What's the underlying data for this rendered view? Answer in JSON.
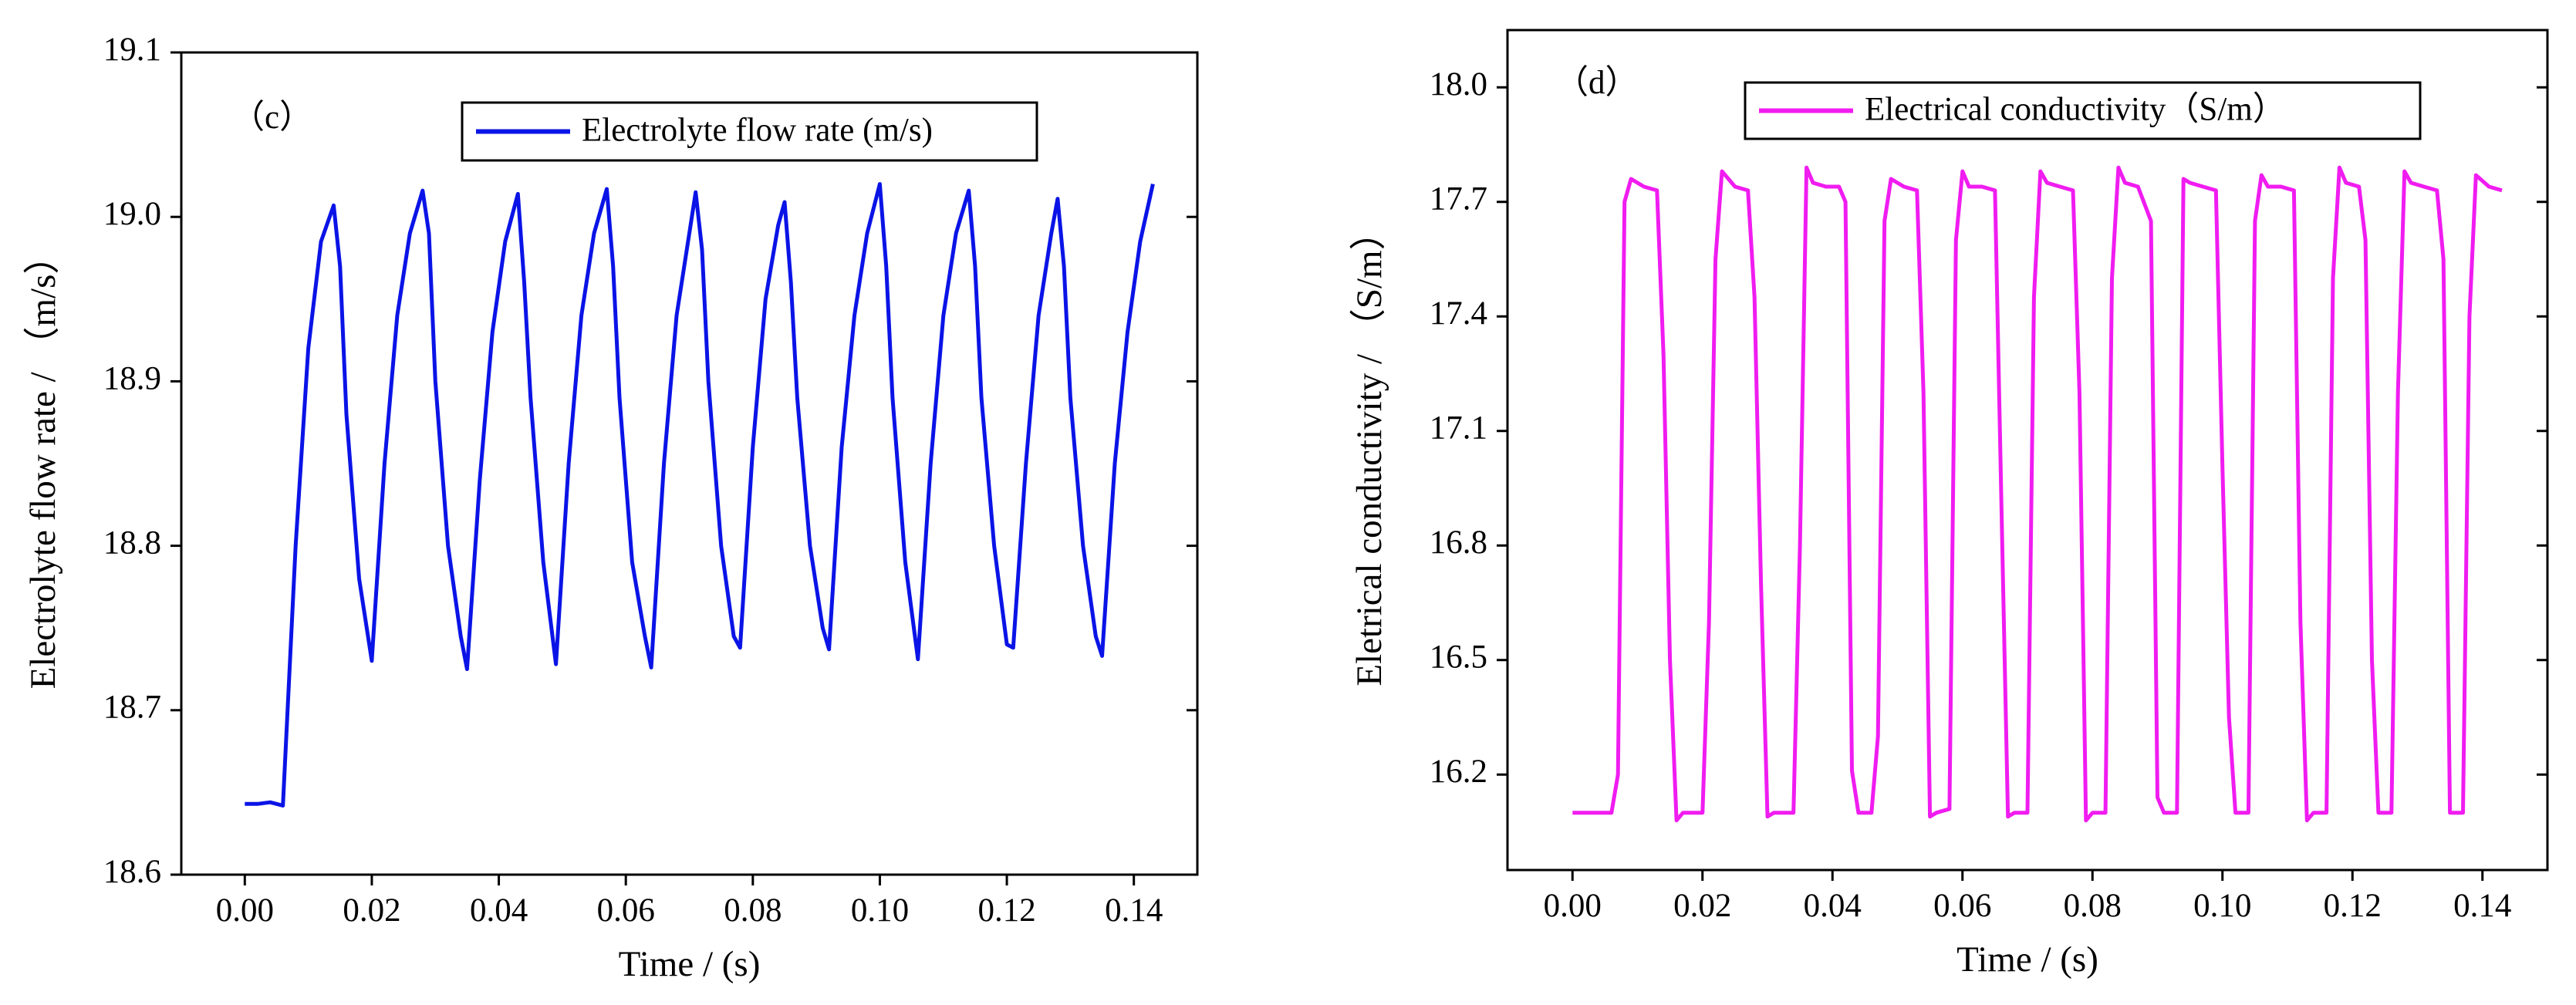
{
  "chart_data": [
    {
      "type": "line",
      "panel_label": "（c）",
      "xlabel": "Time / (s)",
      "ylabel": "Electrolyte flow rate  / （m/s）",
      "xlim": [
        -0.01,
        0.15
      ],
      "ylim": [
        18.6,
        19.1
      ],
      "xticks": [
        {
          "value": 0,
          "label": "0.00"
        },
        {
          "value": 0.02,
          "label": "0.02"
        },
        {
          "value": 0.04,
          "label": "0.04"
        },
        {
          "value": 0.06,
          "label": "0.06"
        },
        {
          "value": 0.08,
          "label": "0.08"
        },
        {
          "value": 0.1,
          "label": "0.10"
        },
        {
          "value": 0.12,
          "label": "0.12"
        },
        {
          "value": 0.14,
          "label": "0.14"
        }
      ],
      "yticks": [
        18.6,
        18.7,
        18.8,
        18.9,
        {
          "value": 19,
          "label": "19.0"
        },
        19.1
      ],
      "x": [
        0.0,
        0.002,
        0.004,
        0.005,
        0.006,
        0.008,
        0.01,
        0.012,
        0.014,
        0.015,
        0.016,
        0.018,
        0.02,
        0.022,
        0.024,
        0.026,
        0.028,
        0.029,
        0.03,
        0.032,
        0.034,
        0.035,
        0.037,
        0.039,
        0.041,
        0.043,
        0.044,
        0.045,
        0.047,
        0.049,
        0.051,
        0.053,
        0.055,
        0.057,
        0.058,
        0.059,
        0.061,
        0.063,
        0.064,
        0.066,
        0.068,
        0.07,
        0.071,
        0.072,
        0.073,
        0.075,
        0.077,
        0.078,
        0.08,
        0.082,
        0.084,
        0.085,
        0.086,
        0.087,
        0.089,
        0.091,
        0.092,
        0.094,
        0.096,
        0.098,
        0.1,
        0.101,
        0.102,
        0.104,
        0.106,
        0.108,
        0.11,
        0.112,
        0.114,
        0.115,
        0.116,
        0.118,
        0.12,
        0.121,
        0.123,
        0.125,
        0.127,
        0.128,
        0.129,
        0.13,
        0.132,
        0.134,
        0.135,
        0.137,
        0.139,
        0.141,
        0.143
      ],
      "series": [
        {
          "name": "Electrolyte flow rate (m/s)",
          "color": "#0a14e6",
          "values": [
            18.643,
            18.643,
            18.644,
            18.643,
            18.642,
            18.8,
            18.92,
            18.985,
            19.007,
            18.97,
            18.88,
            18.78,
            18.73,
            18.85,
            18.94,
            18.99,
            19.016,
            18.99,
            18.9,
            18.8,
            18.745,
            18.725,
            18.84,
            18.93,
            18.985,
            19.014,
            18.96,
            18.89,
            18.79,
            18.728,
            18.85,
            18.94,
            18.99,
            19.017,
            18.97,
            18.89,
            18.79,
            18.745,
            18.726,
            18.85,
            18.94,
            18.99,
            19.015,
            18.98,
            18.9,
            18.8,
            18.745,
            18.738,
            18.86,
            18.95,
            18.995,
            19.009,
            18.96,
            18.89,
            18.8,
            18.75,
            18.737,
            18.86,
            18.94,
            18.99,
            19.02,
            18.97,
            18.89,
            18.79,
            18.731,
            18.85,
            18.94,
            18.99,
            19.016,
            18.97,
            18.89,
            18.8,
            18.74,
            18.738,
            18.85,
            18.94,
            18.99,
            19.011,
            18.97,
            18.89,
            18.8,
            18.745,
            18.733,
            18.85,
            18.93,
            18.985,
            19.02
          ]
        }
      ]
    },
    {
      "type": "line",
      "panel_label": "（d）",
      "xlabel": "Time / (s)",
      "ylabel": "Eletrical conductivity  / （S/m）",
      "xlim": [
        -0.01,
        0.15
      ],
      "ylim": [
        15.95,
        18.15
      ],
      "xticks": [
        {
          "value": 0,
          "label": "0.00"
        },
        {
          "value": 0.02,
          "label": "0.02"
        },
        {
          "value": 0.04,
          "label": "0.04"
        },
        {
          "value": 0.06,
          "label": "0.06"
        },
        {
          "value": 0.08,
          "label": "0.08"
        },
        {
          "value": 0.1,
          "label": "0.10"
        },
        {
          "value": 0.12,
          "label": "0.12"
        },
        {
          "value": 0.14,
          "label": "0.14"
        }
      ],
      "yticks": [
        16.2,
        16.5,
        16.8,
        17.1,
        17.4,
        17.7,
        {
          "value": 18,
          "label": "18.0"
        }
      ],
      "x": [
        0.0,
        0.006,
        0.007,
        0.008,
        0.009,
        0.011,
        0.013,
        0.014,
        0.015,
        0.016,
        0.017,
        0.02,
        0.021,
        0.022,
        0.023,
        0.025,
        0.027,
        0.028,
        0.029,
        0.03,
        0.031,
        0.034,
        0.035,
        0.036,
        0.037,
        0.039,
        0.041,
        0.042,
        0.043,
        0.044,
        0.046,
        0.047,
        0.048,
        0.049,
        0.051,
        0.053,
        0.054,
        0.055,
        0.056,
        0.058,
        0.059,
        0.06,
        0.061,
        0.063,
        0.065,
        0.066,
        0.067,
        0.068,
        0.07,
        0.071,
        0.072,
        0.073,
        0.075,
        0.077,
        0.078,
        0.079,
        0.08,
        0.082,
        0.083,
        0.084,
        0.085,
        0.087,
        0.089,
        0.09,
        0.091,
        0.093,
        0.094,
        0.095,
        0.097,
        0.099,
        0.1,
        0.101,
        0.102,
        0.104,
        0.105,
        0.106,
        0.107,
        0.109,
        0.111,
        0.112,
        0.113,
        0.114,
        0.116,
        0.117,
        0.118,
        0.119,
        0.121,
        0.122,
        0.123,
        0.124,
        0.126,
        0.127,
        0.128,
        0.129,
        0.131,
        0.133,
        0.134,
        0.135,
        0.137,
        0.138,
        0.139,
        0.141,
        0.143
      ],
      "series": [
        {
          "name": "Electrical conductivity（S/m）",
          "color": "#f01cf0",
          "values": [
            16.1,
            16.1,
            16.2,
            17.7,
            17.76,
            17.74,
            17.73,
            17.3,
            16.5,
            16.08,
            16.1,
            16.1,
            16.6,
            17.55,
            17.78,
            17.74,
            17.73,
            17.45,
            16.7,
            16.09,
            16.1,
            16.1,
            16.8,
            17.79,
            17.75,
            17.74,
            17.74,
            17.7,
            16.21,
            16.1,
            16.1,
            16.3,
            17.65,
            17.76,
            17.74,
            17.73,
            17.2,
            16.09,
            16.1,
            16.11,
            17.6,
            17.78,
            17.74,
            17.74,
            17.73,
            16.9,
            16.09,
            16.1,
            16.1,
            17.45,
            17.78,
            17.75,
            17.74,
            17.73,
            17.2,
            16.08,
            16.1,
            16.1,
            17.5,
            17.79,
            17.75,
            17.74,
            17.65,
            16.14,
            16.1,
            16.1,
            17.76,
            17.75,
            17.74,
            17.73,
            17.0,
            16.35,
            16.1,
            16.1,
            17.65,
            17.77,
            17.74,
            17.74,
            17.73,
            16.6,
            16.08,
            16.1,
            16.1,
            17.5,
            17.79,
            17.75,
            17.74,
            17.6,
            16.5,
            16.1,
            16.1,
            17.2,
            17.78,
            17.75,
            17.74,
            17.73,
            17.55,
            16.1,
            16.1,
            17.4,
            17.77,
            17.74,
            17.73
          ]
        }
      ]
    }
  ]
}
